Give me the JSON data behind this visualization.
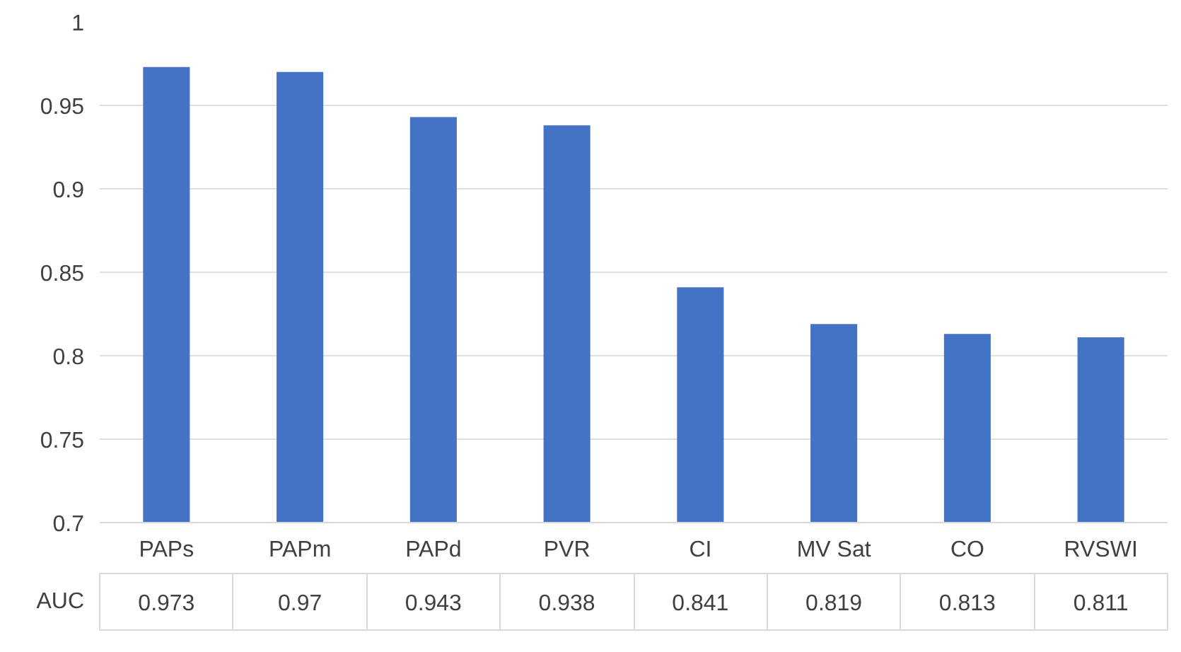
{
  "chart_data": {
    "type": "bar",
    "categories": [
      "PAPs",
      "PAPm",
      "PAPd",
      "PVR",
      "CI",
      "MV Sat",
      "CO",
      "RVSWI"
    ],
    "series": [
      {
        "name": "AUC",
        "color": "#4472c4",
        "values": [
          0.973,
          0.97,
          0.943,
          0.938,
          0.841,
          0.819,
          0.813,
          0.811
        ]
      }
    ],
    "ylim": [
      0.7,
      1
    ],
    "yticks": [
      0.7,
      0.75,
      0.8,
      0.85,
      0.9,
      0.95,
      1
    ],
    "grid": "y",
    "data_labels": true
  }
}
